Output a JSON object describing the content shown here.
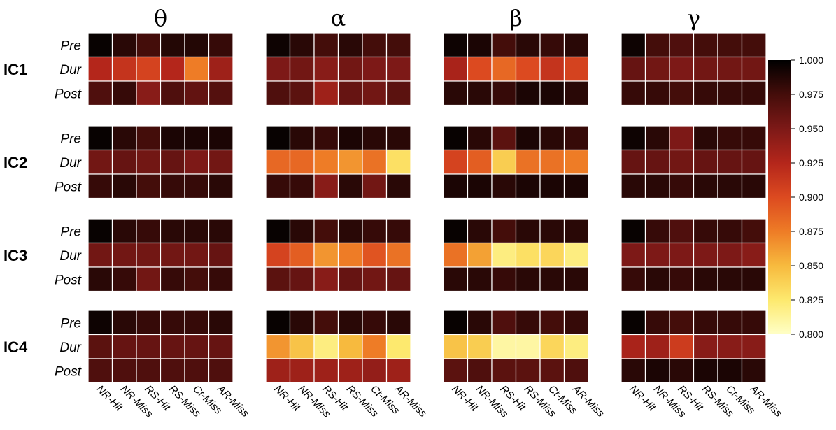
{
  "chart_data": {
    "type": "heatmap",
    "bands": [
      "θ",
      "α",
      "β",
      "γ"
    ],
    "components": [
      "IC1",
      "IC2",
      "IC3",
      "IC4"
    ],
    "rows": [
      "Pre",
      "Dur",
      "Post"
    ],
    "categories": [
      "NR-Hit",
      "NR-Miss",
      "RS-Hit",
      "RS-Miss",
      "Ct-Miss",
      "AR-Miss"
    ],
    "colorbar": {
      "range": [
        0.8,
        1.0
      ],
      "ticks": [
        "1.000",
        "0.975",
        "0.950",
        "0.925",
        "0.900",
        "0.875",
        "0.850",
        "0.825",
        "0.800"
      ],
      "colors": [
        "#ffffc6",
        "#fde96e",
        "#f7ba3e",
        "#ee7c26",
        "#dc4a20",
        "#b4261b",
        "#7d1917",
        "#440d0a",
        "#000000"
      ]
    },
    "values": [
      [
        [
          [
            0.997,
            0.985,
            0.975,
            0.987,
            0.987,
            0.98
          ],
          [
            0.925,
            0.915,
            0.905,
            0.925,
            0.875,
            0.935
          ],
          [
            0.97,
            0.98,
            0.945,
            0.97,
            0.962,
            0.968
          ]
        ],
        [
          [
            0.995,
            0.985,
            0.975,
            0.985,
            0.975,
            0.975
          ],
          [
            0.95,
            0.955,
            0.945,
            0.955,
            0.95,
            0.95
          ],
          [
            0.97,
            0.965,
            0.935,
            0.96,
            0.955,
            0.965
          ]
        ],
        [
          [
            0.995,
            0.99,
            0.975,
            0.985,
            0.98,
            0.985
          ],
          [
            0.93,
            0.9,
            0.885,
            0.9,
            0.915,
            0.905
          ],
          [
            0.985,
            0.985,
            0.98,
            0.99,
            0.99,
            0.985
          ]
        ],
        [
          [
            0.995,
            0.975,
            0.97,
            0.975,
            0.975,
            0.975
          ],
          [
            0.96,
            0.955,
            0.95,
            0.955,
            0.955,
            0.955
          ],
          [
            0.98,
            0.98,
            0.975,
            0.98,
            0.98,
            0.98
          ]
        ]
      ],
      [
        [
          [
            0.997,
            0.985,
            0.975,
            0.99,
            0.99,
            0.99
          ],
          [
            0.955,
            0.96,
            0.955,
            0.96,
            0.95,
            0.955
          ],
          [
            0.98,
            0.985,
            0.975,
            0.98,
            0.98,
            0.985
          ]
        ],
        [
          [
            0.997,
            0.985,
            0.98,
            0.99,
            0.985,
            0.985
          ],
          [
            0.885,
            0.885,
            0.875,
            0.865,
            0.88,
            0.83
          ],
          [
            0.98,
            0.98,
            0.945,
            0.985,
            0.955,
            0.985
          ]
        ],
        [
          [
            0.997,
            0.985,
            0.965,
            0.99,
            0.985,
            0.98
          ],
          [
            0.905,
            0.89,
            0.84,
            0.88,
            0.88,
            0.875
          ],
          [
            0.99,
            0.99,
            0.985,
            0.99,
            0.99,
            0.99
          ]
        ],
        [
          [
            0.995,
            0.985,
            0.95,
            0.985,
            0.98,
            0.98
          ],
          [
            0.96,
            0.96,
            0.955,
            0.96,
            0.96,
            0.96
          ],
          [
            0.985,
            0.985,
            0.98,
            0.985,
            0.985,
            0.985
          ]
        ]
      ],
      [
        [
          [
            0.997,
            0.985,
            0.98,
            0.985,
            0.985,
            0.985
          ],
          [
            0.955,
            0.955,
            0.955,
            0.955,
            0.955,
            0.96
          ],
          [
            0.985,
            0.98,
            0.955,
            0.98,
            0.975,
            0.98
          ]
        ],
        [
          [
            0.997,
            0.985,
            0.975,
            0.985,
            0.98,
            0.98
          ],
          [
            0.905,
            0.89,
            0.865,
            0.875,
            0.895,
            0.88
          ],
          [
            0.965,
            0.96,
            0.945,
            0.96,
            0.955,
            0.96
          ]
        ],
        [
          [
            0.997,
            0.985,
            0.975,
            0.985,
            0.985,
            0.985
          ],
          [
            0.88,
            0.86,
            0.82,
            0.83,
            0.835,
            0.82
          ],
          [
            0.985,
            0.985,
            0.98,
            0.985,
            0.985,
            0.985
          ]
        ],
        [
          [
            0.997,
            0.98,
            0.97,
            0.98,
            0.98,
            0.975
          ],
          [
            0.95,
            0.95,
            0.95,
            0.95,
            0.95,
            0.945
          ],
          [
            0.98,
            0.985,
            0.98,
            0.985,
            0.985,
            0.985
          ]
        ]
      ],
      [
        [
          [
            0.995,
            0.985,
            0.98,
            0.98,
            0.98,
            0.985
          ],
          [
            0.965,
            0.96,
            0.96,
            0.96,
            0.96,
            0.96
          ],
          [
            0.97,
            0.97,
            0.97,
            0.97,
            0.97,
            0.97
          ]
        ],
        [
          [
            0.997,
            0.985,
            0.975,
            0.985,
            0.98,
            0.985
          ],
          [
            0.865,
            0.845,
            0.82,
            0.85,
            0.875,
            0.825
          ],
          [
            0.935,
            0.935,
            0.935,
            0.935,
            0.94,
            0.935
          ]
        ],
        [
          [
            0.997,
            0.985,
            0.97,
            0.98,
            0.975,
            0.98
          ],
          [
            0.845,
            0.84,
            0.81,
            0.81,
            0.835,
            0.82
          ],
          [
            0.965,
            0.97,
            0.965,
            0.965,
            0.965,
            0.97
          ]
        ],
        [
          [
            0.997,
            0.98,
            0.975,
            0.98,
            0.98,
            0.98
          ],
          [
            0.93,
            0.935,
            0.91,
            0.945,
            0.945,
            0.945
          ],
          [
            0.985,
            0.99,
            0.985,
            0.99,
            0.99,
            0.985
          ]
        ]
      ]
    ]
  }
}
